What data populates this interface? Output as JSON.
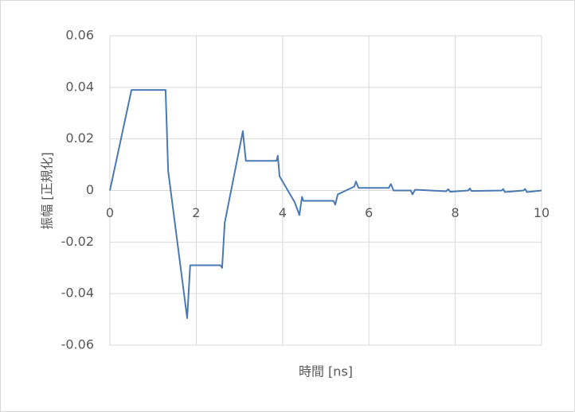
{
  "chart_data": {
    "type": "line",
    "x_label": "時間 [ns]",
    "y_label": "振幅 [正規化]",
    "x": [
      0,
      0.5,
      1.29,
      1.35,
      1.79,
      1.86,
      2.56,
      2.6,
      2.66,
      3.08,
      3.15,
      3.86,
      3.89,
      3.93,
      4.28,
      4.39,
      4.45,
      4.48,
      5.18,
      5.22,
      5.28,
      5.66,
      5.7,
      5.76,
      6.46,
      6.51,
      6.57,
      6.97,
      7.01,
      7.07,
      7.79,
      7.84,
      7.88,
      8.3,
      8.34,
      8.38,
      9.08,
      9.11,
      9.15,
      9.58,
      9.62,
      9.66,
      10
    ],
    "values": [
      0,
      0.039,
      0.039,
      0.0075,
      -0.0495,
      -0.029,
      -0.029,
      -0.03,
      -0.0125,
      0.023,
      0.0115,
      0.0115,
      0.0135,
      0.0055,
      -0.0045,
      -0.0095,
      -0.0025,
      -0.004,
      -0.004,
      -0.0055,
      -0.0015,
      0.0015,
      0.0035,
      0.001,
      0.001,
      0.0025,
      0,
      0,
      -0.0015,
      0.0003,
      -0.0003,
      0.0005,
      -0.0005,
      0,
      0.0008,
      -0.0002,
      0,
      0.0006,
      -0.0006,
      0,
      0.0006,
      -0.0006,
      0
    ],
    "color": "#4a7ab4",
    "xlim": [
      0,
      10
    ],
    "xticks": [
      0,
      2,
      4,
      6,
      8,
      10
    ],
    "ylim": [
      -0.06,
      0.06
    ],
    "yticks": [
      -0.06,
      -0.04,
      -0.02,
      0,
      0.02,
      0.04,
      0.06
    ],
    "grid": true
  }
}
